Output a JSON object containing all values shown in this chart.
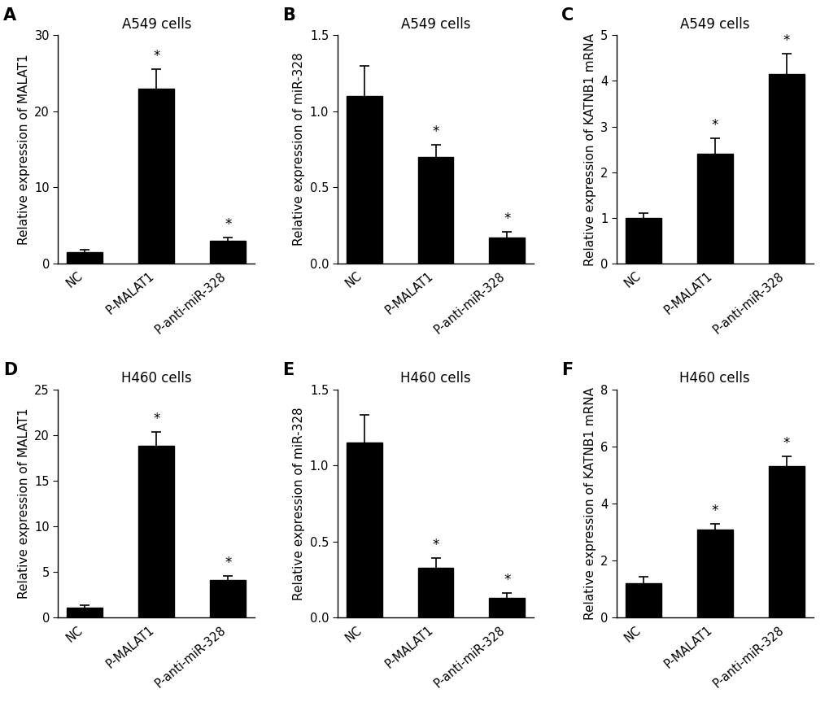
{
  "panels": [
    {
      "label": "A",
      "title": "A549 cells",
      "ylabel": "Relative expression of MALAT1",
      "categories": [
        "NC",
        "P-MALAT1",
        "P-anti-miR-328"
      ],
      "values": [
        1.5,
        23.0,
        3.0
      ],
      "errors": [
        0.3,
        2.5,
        0.4
      ],
      "ylim": [
        0,
        30
      ],
      "yticks": [
        0,
        10,
        20,
        30
      ],
      "sig": [
        false,
        true,
        true
      ]
    },
    {
      "label": "B",
      "title": "A549 cells",
      "ylabel": "Relative expression of miR-328",
      "categories": [
        "NC",
        "P-MALAT1",
        "P-anti-miR-328"
      ],
      "values": [
        1.1,
        0.7,
        0.17
      ],
      "errors": [
        0.2,
        0.08,
        0.04
      ],
      "ylim": [
        0,
        1.5
      ],
      "yticks": [
        0.0,
        0.5,
        1.0,
        1.5
      ],
      "sig": [
        false,
        true,
        true
      ]
    },
    {
      "label": "C",
      "title": "A549 cells",
      "ylabel": "Relative expression of KATNB1 mRNA",
      "categories": [
        "NC",
        "P-MALAT1",
        "P-anti-miR-328"
      ],
      "values": [
        1.0,
        2.4,
        4.15
      ],
      "errors": [
        0.1,
        0.35,
        0.45
      ],
      "ylim": [
        0,
        5
      ],
      "yticks": [
        0,
        1,
        2,
        3,
        4,
        5
      ],
      "sig": [
        false,
        true,
        true
      ]
    },
    {
      "label": "D",
      "title": "H460 cells",
      "ylabel": "Relative expression of MALAT1",
      "categories": [
        "NC",
        "P-MALAT1",
        "P-anti-miR-328"
      ],
      "values": [
        1.1,
        18.8,
        4.1
      ],
      "errors": [
        0.3,
        1.5,
        0.5
      ],
      "ylim": [
        0,
        25
      ],
      "yticks": [
        0,
        5,
        10,
        15,
        20,
        25
      ],
      "sig": [
        false,
        true,
        true
      ]
    },
    {
      "label": "E",
      "title": "H460 cells",
      "ylabel": "Relative expression of miR-328",
      "categories": [
        "NC",
        "P-MALAT1",
        "P-anti-miR-328"
      ],
      "values": [
        1.15,
        0.33,
        0.13
      ],
      "errors": [
        0.18,
        0.06,
        0.03
      ],
      "ylim": [
        0,
        1.5
      ],
      "yticks": [
        0.0,
        0.5,
        1.0,
        1.5
      ],
      "sig": [
        false,
        true,
        true
      ]
    },
    {
      "label": "F",
      "title": "H460 cells",
      "ylabel": "Relative expression of KATNB1 mRNA",
      "categories": [
        "NC",
        "P-MALAT1",
        "P-anti-miR-328"
      ],
      "values": [
        1.2,
        3.1,
        5.3
      ],
      "errors": [
        0.25,
        0.2,
        0.35
      ],
      "ylim": [
        0,
        8
      ],
      "yticks": [
        0,
        2,
        4,
        6,
        8
      ],
      "sig": [
        false,
        true,
        true
      ]
    }
  ],
  "bar_color": "#000000",
  "bar_width": 0.5,
  "capsize": 4,
  "tick_fontsize": 10.5,
  "label_fontsize": 11,
  "title_fontsize": 12,
  "panel_label_fontsize": 15,
  "sig_fontsize": 12,
  "background_color": "#ffffff"
}
